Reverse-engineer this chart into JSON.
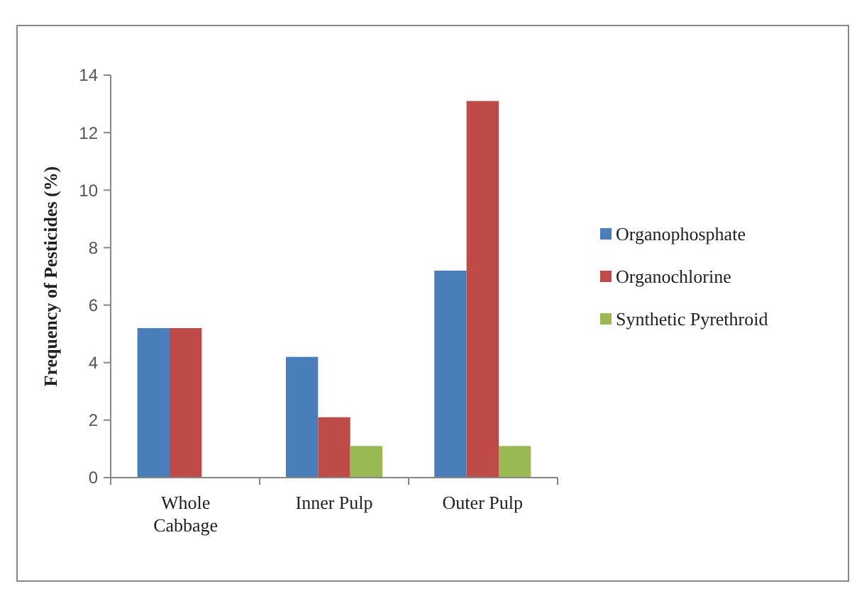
{
  "chart_data": {
    "type": "bar",
    "ylabel": "Frequency of Pesticides (%)",
    "categories": [
      "Whole Cabbage",
      "Inner Pulp",
      "Outer Pulp"
    ],
    "series": [
      {
        "name": "Organophosphate",
        "color": "#4a7ebb",
        "values": [
          5.2,
          4.2,
          7.2
        ]
      },
      {
        "name": "Organochlorine",
        "color": "#be4b48",
        "values": [
          5.2,
          2.1,
          13.1
        ]
      },
      {
        "name": "Synthetic Pyrethroid",
        "color": "#98b954",
        "values": [
          null,
          1.1,
          1.1
        ]
      }
    ],
    "ylim": [
      0,
      14
    ],
    "yticks": [
      0,
      2,
      4,
      6,
      8,
      10,
      12,
      14
    ],
    "legend": "right",
    "grid": false
  }
}
